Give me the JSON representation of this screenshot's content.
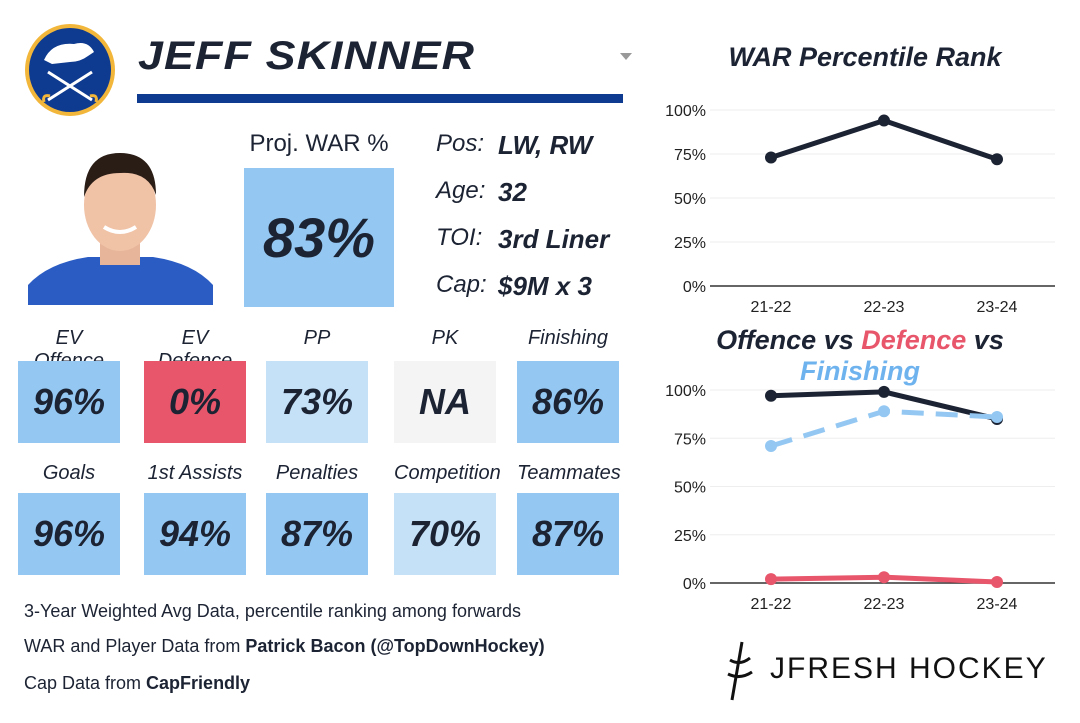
{
  "player": {
    "name": "JEFF SKINNER",
    "proj_war_label": "Proj. WAR %",
    "proj_war_value": "83%"
  },
  "info": [
    {
      "key": "Pos:",
      "value": "LW, RW"
    },
    {
      "key": "Age:",
      "value": "32"
    },
    {
      "key": "TOI:",
      "value": "3rd Liner"
    },
    {
      "key": "Cap:",
      "value": "$9M x 3"
    }
  ],
  "stats": [
    {
      "label": "EV Offence",
      "value": "96%",
      "color": "#94c8f3"
    },
    {
      "label": "EV Defence",
      "value": "0%",
      "color": "#e8566b"
    },
    {
      "label": "PP",
      "value": "73%",
      "color": "#c5e1f8"
    },
    {
      "label": "PK",
      "value": "NA",
      "color": "#f4f4f5"
    },
    {
      "label": "Finishing",
      "value": "86%",
      "color": "#94c8f3"
    },
    {
      "label": "Goals",
      "value": "96%",
      "color": "#94c8f3"
    },
    {
      "label": "1st Assists",
      "value": "94%",
      "color": "#94c8f3"
    },
    {
      "label": "Penalties",
      "value": "87%",
      "color": "#94c8f3"
    },
    {
      "label": "Competition",
      "value": "70%",
      "color": "#c5e1f8"
    },
    {
      "label": "Teammates",
      "value": "87%",
      "color": "#94c8f3"
    }
  ],
  "footer": {
    "line1": "3-Year Weighted Avg Data, percentile ranking among forwards",
    "line2_pre": "WAR and Player Data from ",
    "line2_bold": "Patrick Bacon (@TopDownHockey)",
    "line3_pre": "Cap Data from ",
    "line3_bold": "CapFriendly"
  },
  "brand": "JFRESH HOCKEY",
  "chart_data": [
    {
      "type": "line",
      "title": "WAR Percentile Rank",
      "categories": [
        "21-22",
        "22-23",
        "23-24"
      ],
      "yticks": [
        "0%",
        "25%",
        "50%",
        "75%",
        "100%"
      ],
      "ylim": [
        0,
        100
      ],
      "series": [
        {
          "values": [
            73,
            94,
            72
          ],
          "color": "#1c2333"
        }
      ]
    },
    {
      "type": "line",
      "title_parts": [
        {
          "text": "Offence",
          "color": "#1c2333"
        },
        {
          "text": " vs ",
          "color": "#1c2333"
        },
        {
          "text": "Defence",
          "color": "#e8566b"
        },
        {
          "text": " vs ",
          "color": "#1c2333"
        },
        {
          "text": "Finishing",
          "color": "#6fb3ee"
        }
      ],
      "categories": [
        "21-22",
        "22-23",
        "23-24"
      ],
      "yticks": [
        "0%",
        "25%",
        "50%",
        "75%",
        "100%"
      ],
      "ylim": [
        0,
        100
      ],
      "series": [
        {
          "name": "Offence",
          "values": [
            97,
            99,
            85
          ],
          "color": "#1c2333",
          "dashed": false
        },
        {
          "name": "Finishing",
          "values": [
            71,
            89,
            86
          ],
          "color": "#94c8f3",
          "dashed": true
        },
        {
          "name": "Defence",
          "values": [
            2,
            3,
            0.5
          ],
          "color": "#e8566b",
          "dashed": false
        }
      ]
    }
  ]
}
